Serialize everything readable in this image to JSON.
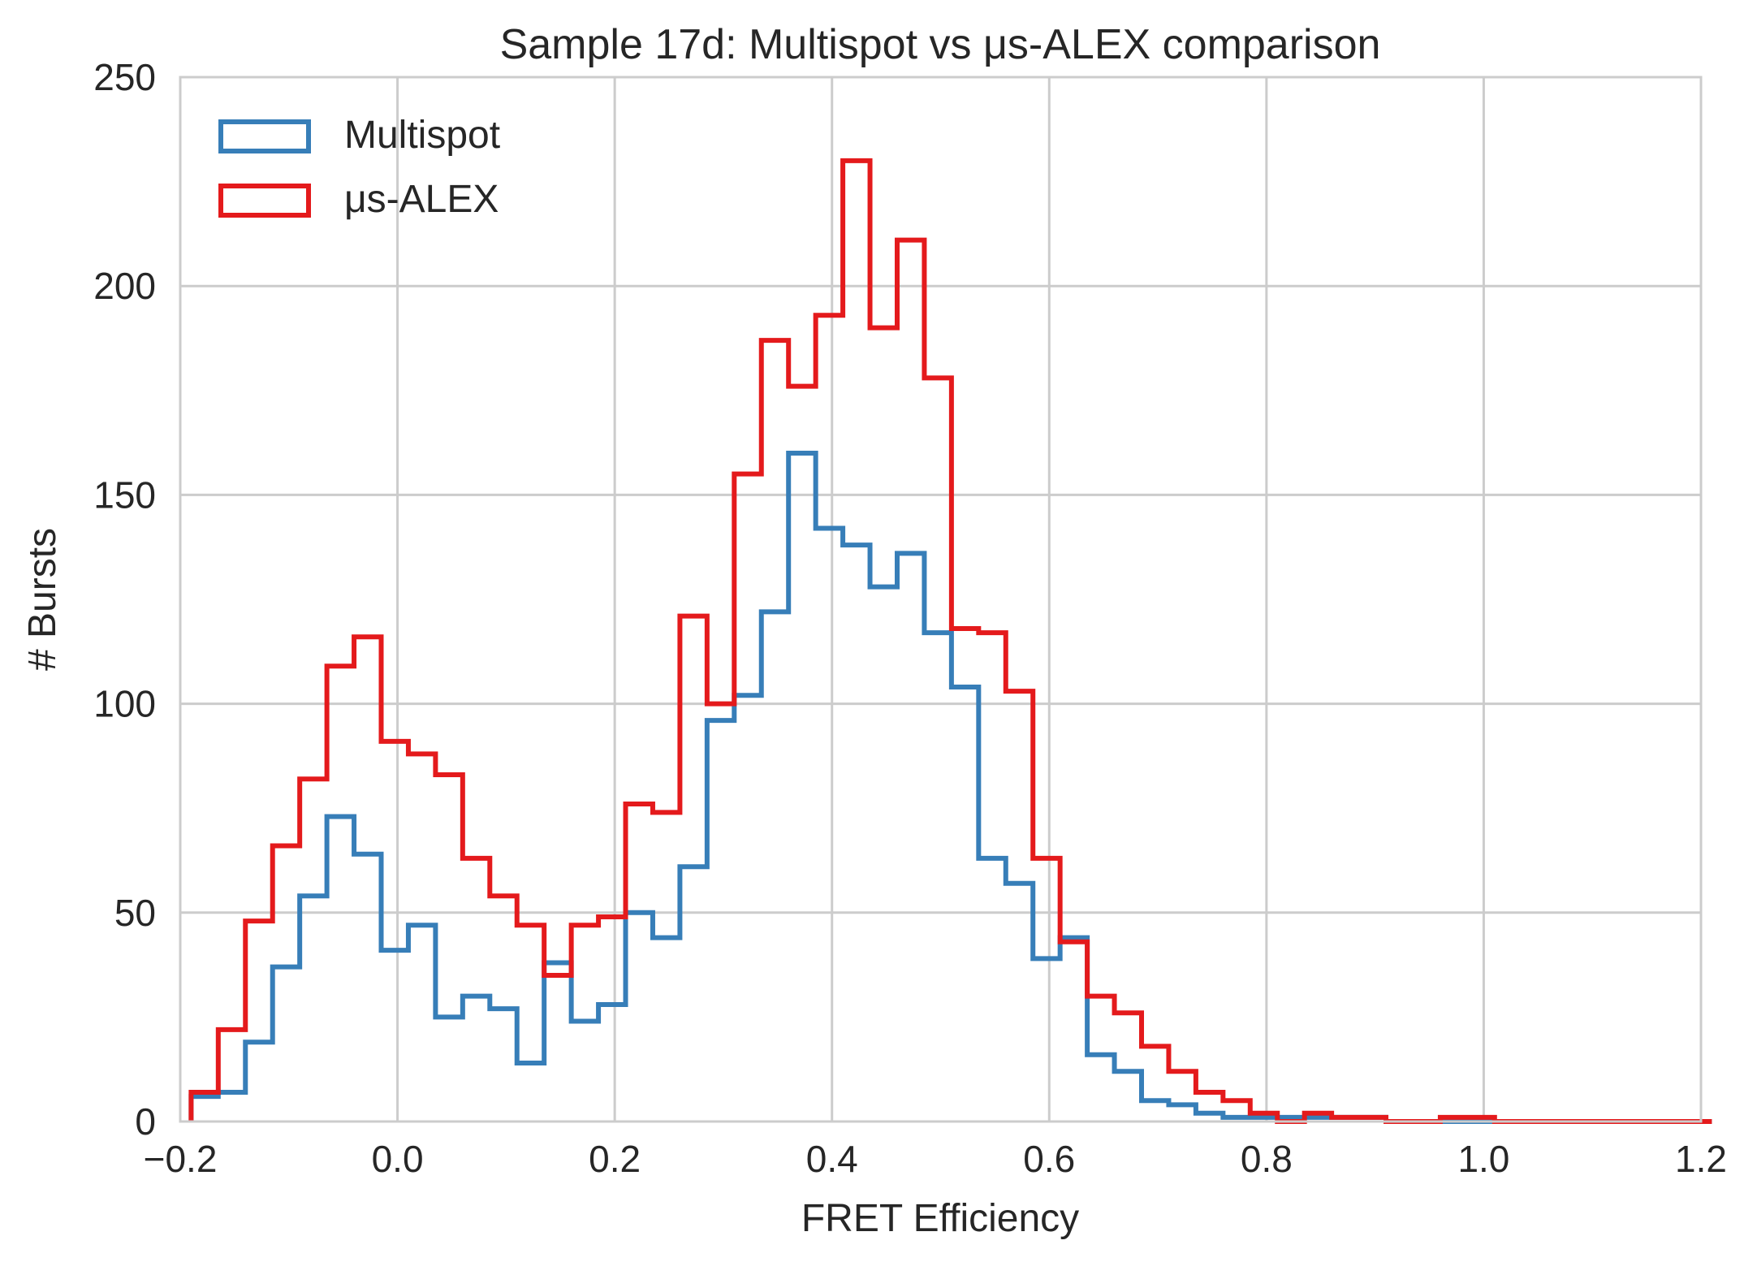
{
  "chart_data": {
    "type": "histogram",
    "title": "Sample 17d: Multispot vs μs-ALEX comparison",
    "xlabel": "FRET Efficiency",
    "ylabel": "# Bursts",
    "xlim": [
      -0.2,
      1.2
    ],
    "ylim": [
      0,
      250
    ],
    "x_ticks": [
      -0.2,
      0.0,
      0.2,
      0.4,
      0.6,
      0.8,
      1.0,
      1.2
    ],
    "x_tick_labels": [
      "−0.2",
      "0.0",
      "0.2",
      "0.4",
      "0.6",
      "0.8",
      "1.0",
      "1.2"
    ],
    "y_ticks": [
      0,
      50,
      100,
      150,
      200,
      250
    ],
    "y_tick_labels": [
      "0",
      "50",
      "100",
      "150",
      "200",
      "250"
    ],
    "grid": true,
    "legend_position": "top-left",
    "bin_start": -0.19,
    "bin_width": 0.025,
    "series": [
      {
        "name": "Multispot",
        "color": "#377eb8",
        "values": [
          6,
          7,
          19,
          37,
          54,
          73,
          64,
          41,
          47,
          25,
          30,
          27,
          14,
          38,
          24,
          28,
          50,
          44,
          61,
          96,
          102,
          122,
          160,
          142,
          138,
          128,
          136,
          117,
          104,
          63,
          57,
          39,
          44,
          16,
          12,
          5,
          4,
          2,
          1,
          1,
          1,
          1,
          1,
          1,
          0,
          0,
          0,
          0,
          0,
          0,
          0,
          0,
          0,
          0,
          0,
          0
        ]
      },
      {
        "name": "μs-ALEX",
        "color": "#e41a1c",
        "values": [
          7,
          22,
          48,
          66,
          82,
          109,
          116,
          91,
          88,
          83,
          63,
          54,
          47,
          35,
          47,
          49,
          76,
          74,
          121,
          100,
          155,
          187,
          176,
          193,
          230,
          190,
          211,
          178,
          118,
          117,
          103,
          63,
          43,
          30,
          26,
          18,
          12,
          7,
          5,
          2,
          0,
          2,
          1,
          1,
          0,
          0,
          1,
          1,
          0,
          0,
          0,
          0,
          0,
          0,
          0,
          0
        ]
      }
    ]
  }
}
